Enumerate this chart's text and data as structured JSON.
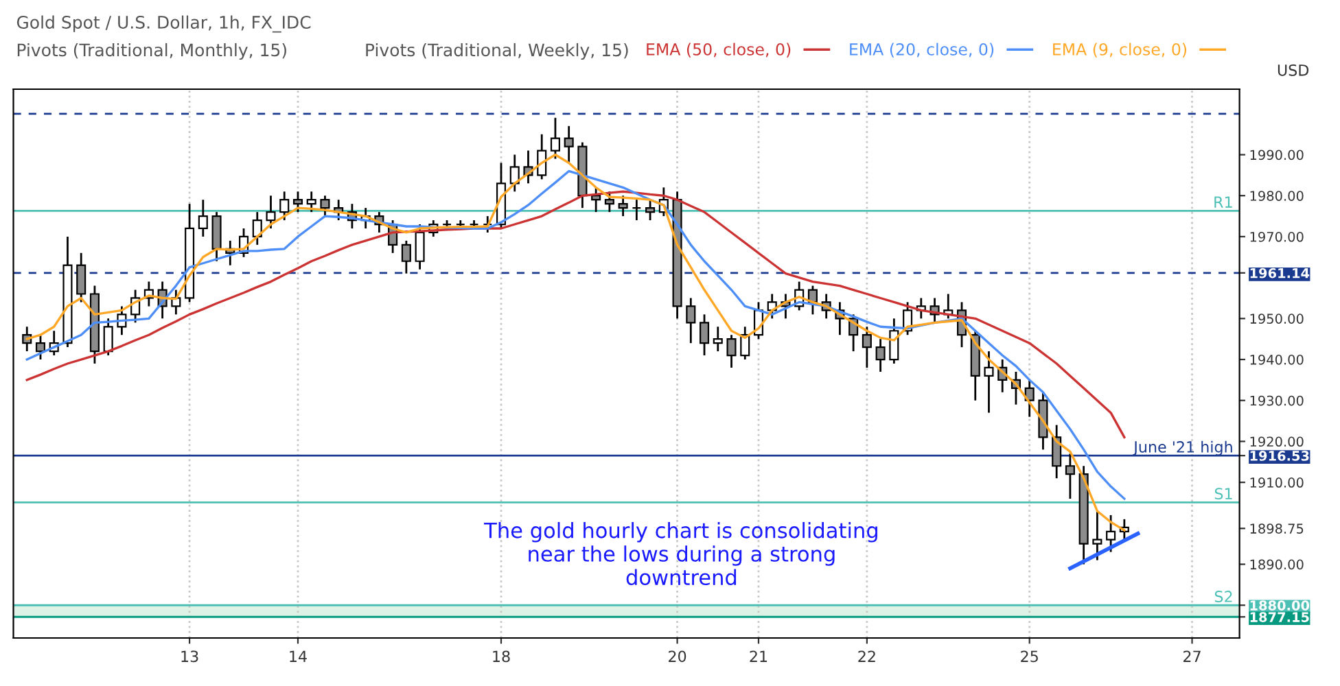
{
  "chart_data": {
    "type": "candlestick",
    "title": "Gold Spot / U.S. Dollar, 1h, FX_IDC",
    "ylabel": "USD",
    "annotations": [
      "Pivots (Traditional, Monthly, 15)",
      "Pivots (Traditional, Weekly, 15)",
      "The gold hourly chart is consolidating\nnear the lows during a strong\ndowntrend"
    ],
    "categories": [
      null,
      null,
      null,
      null,
      null,
      null,
      null,
      null,
      null,
      null,
      null,
      null,
      "13",
      null,
      null,
      null,
      null,
      null,
      null,
      null,
      "14",
      null,
      null,
      null,
      null,
      null,
      null,
      null,
      null,
      null,
      null,
      null,
      null,
      null,
      null,
      "18",
      null,
      null,
      null,
      null,
      null,
      null,
      null,
      null,
      null,
      null,
      null,
      null,
      "20",
      null,
      null,
      null,
      null,
      null,
      "21",
      null,
      null,
      null,
      null,
      null,
      null,
      null,
      "22",
      null,
      null,
      null,
      null,
      null,
      null,
      null,
      null,
      null,
      null,
      null,
      "25",
      null,
      null,
      null,
      null,
      null,
      null,
      null,
      null,
      null,
      null,
      null,
      "27",
      null,
      null,
      null
    ],
    "ohlc": [
      [
        1946,
        1948,
        1942,
        1944
      ],
      [
        1944,
        1946,
        1940,
        1942
      ],
      [
        1942,
        1947,
        1941,
        1944
      ],
      [
        1944,
        1970,
        1943,
        1963
      ],
      [
        1963,
        1966,
        1954,
        1956
      ],
      [
        1956,
        1958,
        1939,
        1942
      ],
      [
        1942,
        1950,
        1941,
        1948
      ],
      [
        1948,
        1953,
        1946,
        1951
      ],
      [
        1951,
        1957,
        1949,
        1955
      ],
      [
        1955,
        1959,
        1953,
        1957
      ],
      [
        1957,
        1959,
        1950,
        1953
      ],
      [
        1953,
        1957,
        1951,
        1955
      ],
      [
        1955,
        1978,
        1954,
        1972
      ],
      [
        1972,
        1979,
        1970,
        1975
      ],
      [
        1975,
        1976,
        1964,
        1967
      ],
      [
        1967,
        1969,
        1963,
        1966
      ],
      [
        1966,
        1972,
        1965,
        1970
      ],
      [
        1970,
        1976,
        1968,
        1974
      ],
      [
        1974,
        1980,
        1972,
        1976
      ],
      [
        1976,
        1981,
        1974,
        1979
      ],
      [
        1979,
        1981,
        1976,
        1978
      ],
      [
        1978,
        1981,
        1976,
        1979
      ],
      [
        1979,
        1980,
        1975,
        1977
      ],
      [
        1977,
        1979,
        1974,
        1976
      ],
      [
        1976,
        1978,
        1972,
        1974
      ],
      [
        1974,
        1977,
        1972,
        1975
      ],
      [
        1975,
        1976,
        1971,
        1973
      ],
      [
        1973,
        1974,
        1966,
        1968
      ],
      [
        1968,
        1969,
        1961,
        1964
      ],
      [
        1964,
        1973,
        1962,
        1971
      ],
      [
        1971,
        1974,
        1970,
        1973
      ],
      [
        1973,
        1974,
        1972,
        1973
      ],
      [
        1973,
        1974,
        1972,
        1973
      ],
      [
        1973,
        1974,
        1972,
        1973
      ],
      [
        1973,
        1975,
        1971,
        1973
      ],
      [
        1973,
        1988,
        1972,
        1983
      ],
      [
        1983,
        1990,
        1981,
        1987
      ],
      [
        1987,
        1991,
        1983,
        1985
      ],
      [
        1985,
        1995,
        1984,
        1991
      ],
      [
        1991,
        1999,
        1989,
        1994
      ],
      [
        1994,
        1997,
        1988,
        1992
      ],
      [
        1992,
        1993,
        1977,
        1980
      ],
      [
        1980,
        1982,
        1976,
        1979
      ],
      [
        1979,
        1981,
        1976,
        1978
      ],
      [
        1978,
        1980,
        1975,
        1977
      ],
      [
        1977,
        1979,
        1974,
        1977
      ],
      [
        1977,
        1979,
        1974,
        1976
      ],
      [
        1976,
        1982,
        1975,
        1979
      ],
      [
        1979,
        1981,
        1950,
        1953
      ],
      [
        1953,
        1955,
        1944,
        1949
      ],
      [
        1949,
        1951,
        1941,
        1944
      ],
      [
        1944,
        1948,
        1942,
        1945
      ],
      [
        1945,
        1946,
        1938,
        1941
      ],
      [
        1941,
        1948,
        1940,
        1946
      ],
      [
        1946,
        1954,
        1945,
        1952
      ],
      [
        1952,
        1956,
        1950,
        1954
      ],
      [
        1954,
        1956,
        1950,
        1953
      ],
      [
        1953,
        1959,
        1952,
        1957
      ],
      [
        1957,
        1958,
        1951,
        1954
      ],
      [
        1954,
        1956,
        1950,
        1952
      ],
      [
        1952,
        1954,
        1946,
        1950
      ],
      [
        1950,
        1951,
        1942,
        1946
      ],
      [
        1946,
        1948,
        1938,
        1943
      ],
      [
        1943,
        1945,
        1937,
        1940
      ],
      [
        1940,
        1950,
        1939,
        1947
      ],
      [
        1947,
        1954,
        1946,
        1952
      ],
      [
        1952,
        1955,
        1950,
        1953
      ],
      [
        1953,
        1955,
        1949,
        1951
      ],
      [
        1951,
        1956,
        1950,
        1952
      ],
      [
        1952,
        1954,
        1943,
        1946
      ],
      [
        1946,
        1947,
        1930,
        1936
      ],
      [
        1936,
        1942,
        1927,
        1938
      ],
      [
        1938,
        1940,
        1932,
        1935
      ],
      [
        1935,
        1937,
        1929,
        1933
      ],
      [
        1933,
        1935,
        1926,
        1930
      ],
      [
        1930,
        1932,
        1918,
        1921
      ],
      [
        1921,
        1924,
        1911,
        1914
      ],
      [
        1914,
        1917,
        1906,
        1912
      ],
      [
        1912,
        1914,
        1890,
        1895
      ],
      [
        1895,
        1903,
        1891,
        1896
      ],
      [
        1896,
        1902,
        1893,
        1898
      ],
      [
        1898,
        1901,
        1896,
        1899
      ],
      null,
      null,
      null,
      null,
      null,
      null,
      null,
      null
    ],
    "series": [
      {
        "name": "EMA (50, close, 0)",
        "type": "line",
        "color": "#cc3333",
        "values": [
          1935,
          1936.3,
          1937.7,
          1939,
          1940,
          1941,
          1942,
          1943.3,
          1944.7,
          1946,
          1947.7,
          1949.3,
          1951,
          1952.3,
          1953.7,
          1955,
          1956.3,
          1957.7,
          1959,
          1960.7,
          1962.3,
          1964,
          1965.3,
          1966.7,
          1968,
          1969,
          1970,
          1971,
          1971.2,
          1971.3,
          1971.5,
          1971.7,
          1971.8,
          1972,
          1972,
          1972,
          1973,
          1974,
          1975,
          1976.7,
          1978.3,
          1980,
          1980.3,
          1980.7,
          1981,
          1980.7,
          1980.3,
          1980,
          1979,
          1977.5,
          1976,
          1973.5,
          1971,
          1968.5,
          1966,
          1963.5,
          1961,
          1960,
          1959,
          1958.5,
          1958,
          1957,
          1956,
          1955,
          1954,
          1953,
          1952,
          1951.5,
          1951,
          1950.5,
          1950,
          1948.5,
          1947,
          1945.5,
          1944,
          1941.5,
          1939,
          1936,
          1933,
          1930,
          1927,
          1921,
          null,
          null,
          null,
          null,
          null,
          null,
          null,
          null
        ]
      },
      {
        "name": "EMA (20, close, 0)",
        "type": "line",
        "color": "#4d8ef7",
        "values": [
          1940,
          1941.5,
          1943,
          1944.5,
          1946,
          1949,
          1949.2,
          1949.5,
          1949.7,
          1950,
          1954,
          1958,
          1962.5,
          1963.5,
          1964.5,
          1965.5,
          1966.5,
          1966.5,
          1966.8,
          1967,
          1970,
          1972.5,
          1975,
          1974.8,
          1974.5,
          1974,
          1973.5,
          1973,
          1972.5,
          1972.5,
          1972.3,
          1972.2,
          1972.1,
          1972,
          1972,
          1973.5,
          1975.5,
          1977.7,
          1980.5,
          1983.2,
          1986,
          1985,
          1984,
          1983,
          1982,
          1980.5,
          1979,
          1977.7,
          1973,
          1968,
          1964,
          1960.5,
          1957,
          1953,
          1952,
          1951,
          1952.5,
          1954,
          1953.5,
          1953,
          1951.7,
          1950.5,
          1949.2,
          1948,
          1947.8,
          1947.6,
          1948.3,
          1949,
          1949.5,
          1950,
          1947,
          1944,
          1941,
          1938.4,
          1935,
          1932,
          1927.5,
          1923,
          1918,
          1912.6,
          1909,
          1906,
          null,
          null,
          null,
          null,
          null,
          null,
          null,
          null
        ]
      },
      {
        "name": "EMA (9, close, 0)",
        "type": "line",
        "color": "#ffa726",
        "values": [
          1945,
          1946,
          1948,
          1953,
          1955,
          1951,
          1951.5,
          1952,
          1954,
          1955.6,
          1955,
          1954.8,
          1960.5,
          1965,
          1967,
          1966.8,
          1967,
          1970,
          1973,
          1975,
          1977,
          1976.8,
          1976.5,
          1976,
          1975.5,
          1975,
          1973.5,
          1972,
          1971,
          1972,
          1972.2,
          1972.3,
          1972.4,
          1972.4,
          1972.5,
          1979.7,
          1983,
          1985.4,
          1988,
          1990,
          1988,
          1985,
          1982,
          1979.7,
          1979.5,
          1979.3,
          1979,
          1977.7,
          1968,
          1962.5,
          1957,
          1952,
          1947,
          1945.3,
          1947.6,
          1952,
          1954,
          1955.3,
          1954,
          1953,
          1951,
          1949,
          1947,
          1945.3,
          1944.7,
          1948,
          1948.5,
          1949,
          1949.3,
          1949.6,
          1944,
          1940,
          1937,
          1934,
          1929.5,
          1925,
          1920,
          1917.5,
          1911,
          1903,
          1900.3,
          1898.3,
          null,
          null,
          null,
          null,
          null,
          null,
          null,
          null
        ]
      },
      {
        "type": "line",
        "color": "#2962ff",
        "values": [
          null,
          null,
          null,
          null,
          null,
          null,
          null,
          null,
          null,
          null,
          null,
          null,
          null,
          null,
          null,
          null,
          null,
          null,
          null,
          null,
          null,
          null,
          null,
          null,
          null,
          null,
          null,
          null,
          null,
          null,
          null,
          null,
          null,
          null,
          null,
          null,
          null,
          null,
          null,
          null,
          null,
          null,
          null,
          null,
          null,
          null,
          null,
          null,
          null,
          null,
          null,
          null,
          null,
          null,
          null,
          null,
          null,
          null,
          null,
          null,
          null,
          null,
          null,
          null,
          null,
          null,
          null,
          null,
          null,
          null,
          null,
          null,
          null,
          null,
          null,
          null,
          null,
          1889,
          null,
          null,
          null,
          null,
          1897.5,
          null,
          null,
          null,
          null,
          null,
          null,
          null
        ]
      }
    ],
    "ylim": [
      1872,
      2006
    ],
    "yticks": [
      {
        "value": 1990,
        "label": "1990.00"
      },
      {
        "value": 1980,
        "label": "1980.00"
      },
      {
        "value": 1970,
        "label": "1970.00"
      },
      {
        "value": 1961.14,
        "label": "1961.14"
      },
      {
        "value": 1950,
        "label": "1950.00"
      },
      {
        "value": 1940,
        "label": "1940.00"
      },
      {
        "value": 1930,
        "label": "1930.00"
      },
      {
        "value": 1920,
        "label": "1920.00"
      },
      {
        "value": 1916.53,
        "label": "1916.53"
      },
      {
        "value": 1910,
        "label": "1910.00"
      },
      {
        "value": 1898.75,
        "label": "1898.75"
      },
      {
        "value": 1890,
        "label": "1890.00"
      },
      {
        "value": 1880,
        "label": "1880.00"
      },
      {
        "value": 1877.15,
        "label": "1877.15"
      }
    ],
    "ref_lines": [
      {
        "axis": "y",
        "value": 2000,
        "color": "#1a3a8f",
        "line_style": "dashed"
      },
      {
        "axis": "y",
        "value": 1961.14,
        "color": "#1a3a8f",
        "line_style": "dashed"
      },
      {
        "axis": "y",
        "value": 1976.3,
        "label": "R1",
        "color": "#4dc0b5",
        "line_style": "solid"
      },
      {
        "axis": "y",
        "value": 1916.53,
        "label": "June '21 high",
        "color": "#1a3a8f",
        "line_style": "solid"
      },
      {
        "axis": "y",
        "value": 1905.1,
        "label": "S1",
        "color": "#4dc0b5",
        "line_style": "solid"
      },
      {
        "axis": "y",
        "value": 1880,
        "label": "S2",
        "color": "#4dc0b5",
        "line_style": "solid"
      },
      {
        "axis": "y",
        "value": 1877.15,
        "color": "#089981",
        "line_style": "solid"
      }
    ],
    "bands": [
      {
        "axis": "y",
        "from": 1877.15,
        "to": 1880,
        "color": "#dff2e6"
      }
    ],
    "grid": "x",
    "legend": "top"
  }
}
